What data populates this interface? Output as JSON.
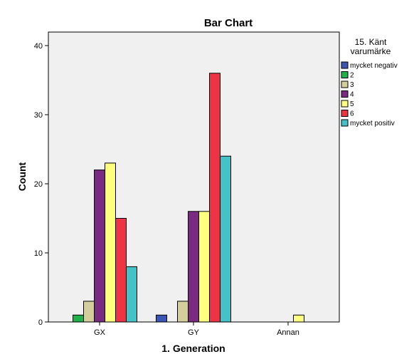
{
  "chart_data": {
    "type": "bar",
    "title": "Bar Chart",
    "xlabel": "1. Generation",
    "ylabel": "Count",
    "categories": [
      "GX",
      "GY",
      "Annan"
    ],
    "ylim": [
      0,
      42
    ],
    "yticks": [
      0,
      10,
      20,
      30,
      40
    ],
    "grid": false,
    "legend_position": "right",
    "legend_title": [
      "15. Känt",
      "varumärke"
    ],
    "series": [
      {
        "name": "mycket negativ",
        "color": "#3a55b4",
        "values": [
          0,
          1,
          0
        ]
      },
      {
        "name": "2",
        "color": "#1fb24a",
        "values": [
          1,
          0,
          0
        ]
      },
      {
        "name": "3",
        "color": "#d4cd9c",
        "values": [
          3,
          3,
          0
        ]
      },
      {
        "name": "4",
        "color": "#7a2a80",
        "values": [
          22,
          16,
          0
        ]
      },
      {
        "name": "5",
        "color": "#ffff80",
        "values": [
          23,
          16,
          1
        ]
      },
      {
        "name": "6",
        "color": "#ee3344",
        "values": [
          15,
          36,
          0
        ]
      },
      {
        "name": "mycket positiv",
        "color": "#44c2c8",
        "values": [
          8,
          24,
          0
        ]
      }
    ]
  }
}
